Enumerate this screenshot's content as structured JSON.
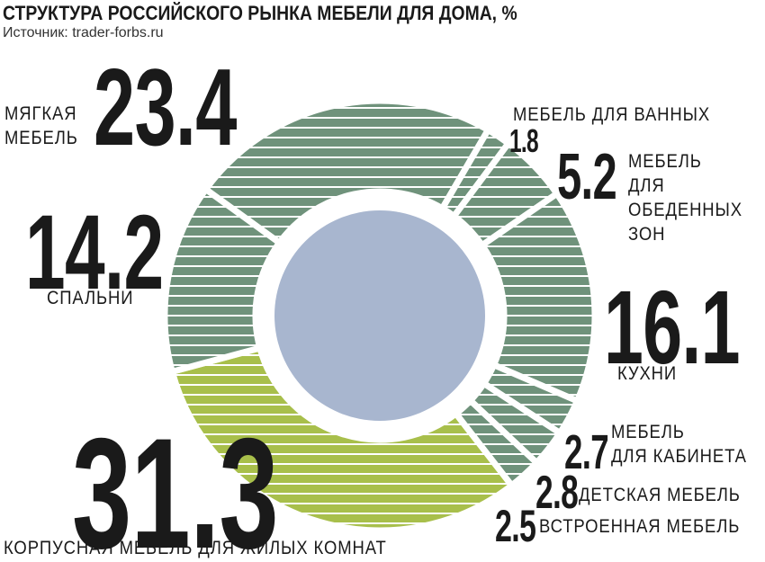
{
  "chart_data": {
    "type": "donut",
    "title": "СТРУКТУРА РОССИЙСКОГО РЫНКА МЕБЕЛИ ДЛЯ ДОМА, %",
    "subtitle": "Источник: trader-forbs.ru",
    "categories": [
      "МЯГКАЯ\nМЕБЕЛЬ",
      "МЕБЕЛЬ ДЛЯ ВАННЫХ",
      "МЕБЕЛЬ\nДЛЯ\nОБЕДЕННЫХ\nЗОН",
      "КУХНИ",
      "МЕБЕЛЬ\nДЛЯ КАБИНЕТА",
      "ДЕТСКАЯ МЕБЕЛЬ",
      "ВСТРОЕННАЯ МЕБЕЛЬ",
      "КОРПУСНАЯ МЕБЕЛЬ ДЛЯ ЖИЛЫХ КОМНАТ",
      "СПАЛЬНИ"
    ],
    "values": [
      23.4,
      1.8,
      5.2,
      16.1,
      2.7,
      2.8,
      2.5,
      31.3,
      14.2
    ],
    "colors": [
      "#6f927b",
      "#6f927b",
      "#6f927b",
      "#6f927b",
      "#6f927b",
      "#6f927b",
      "#6f927b",
      "#a8bf4b",
      "#6f927b"
    ],
    "center_color": "#a8b6cf"
  }
}
